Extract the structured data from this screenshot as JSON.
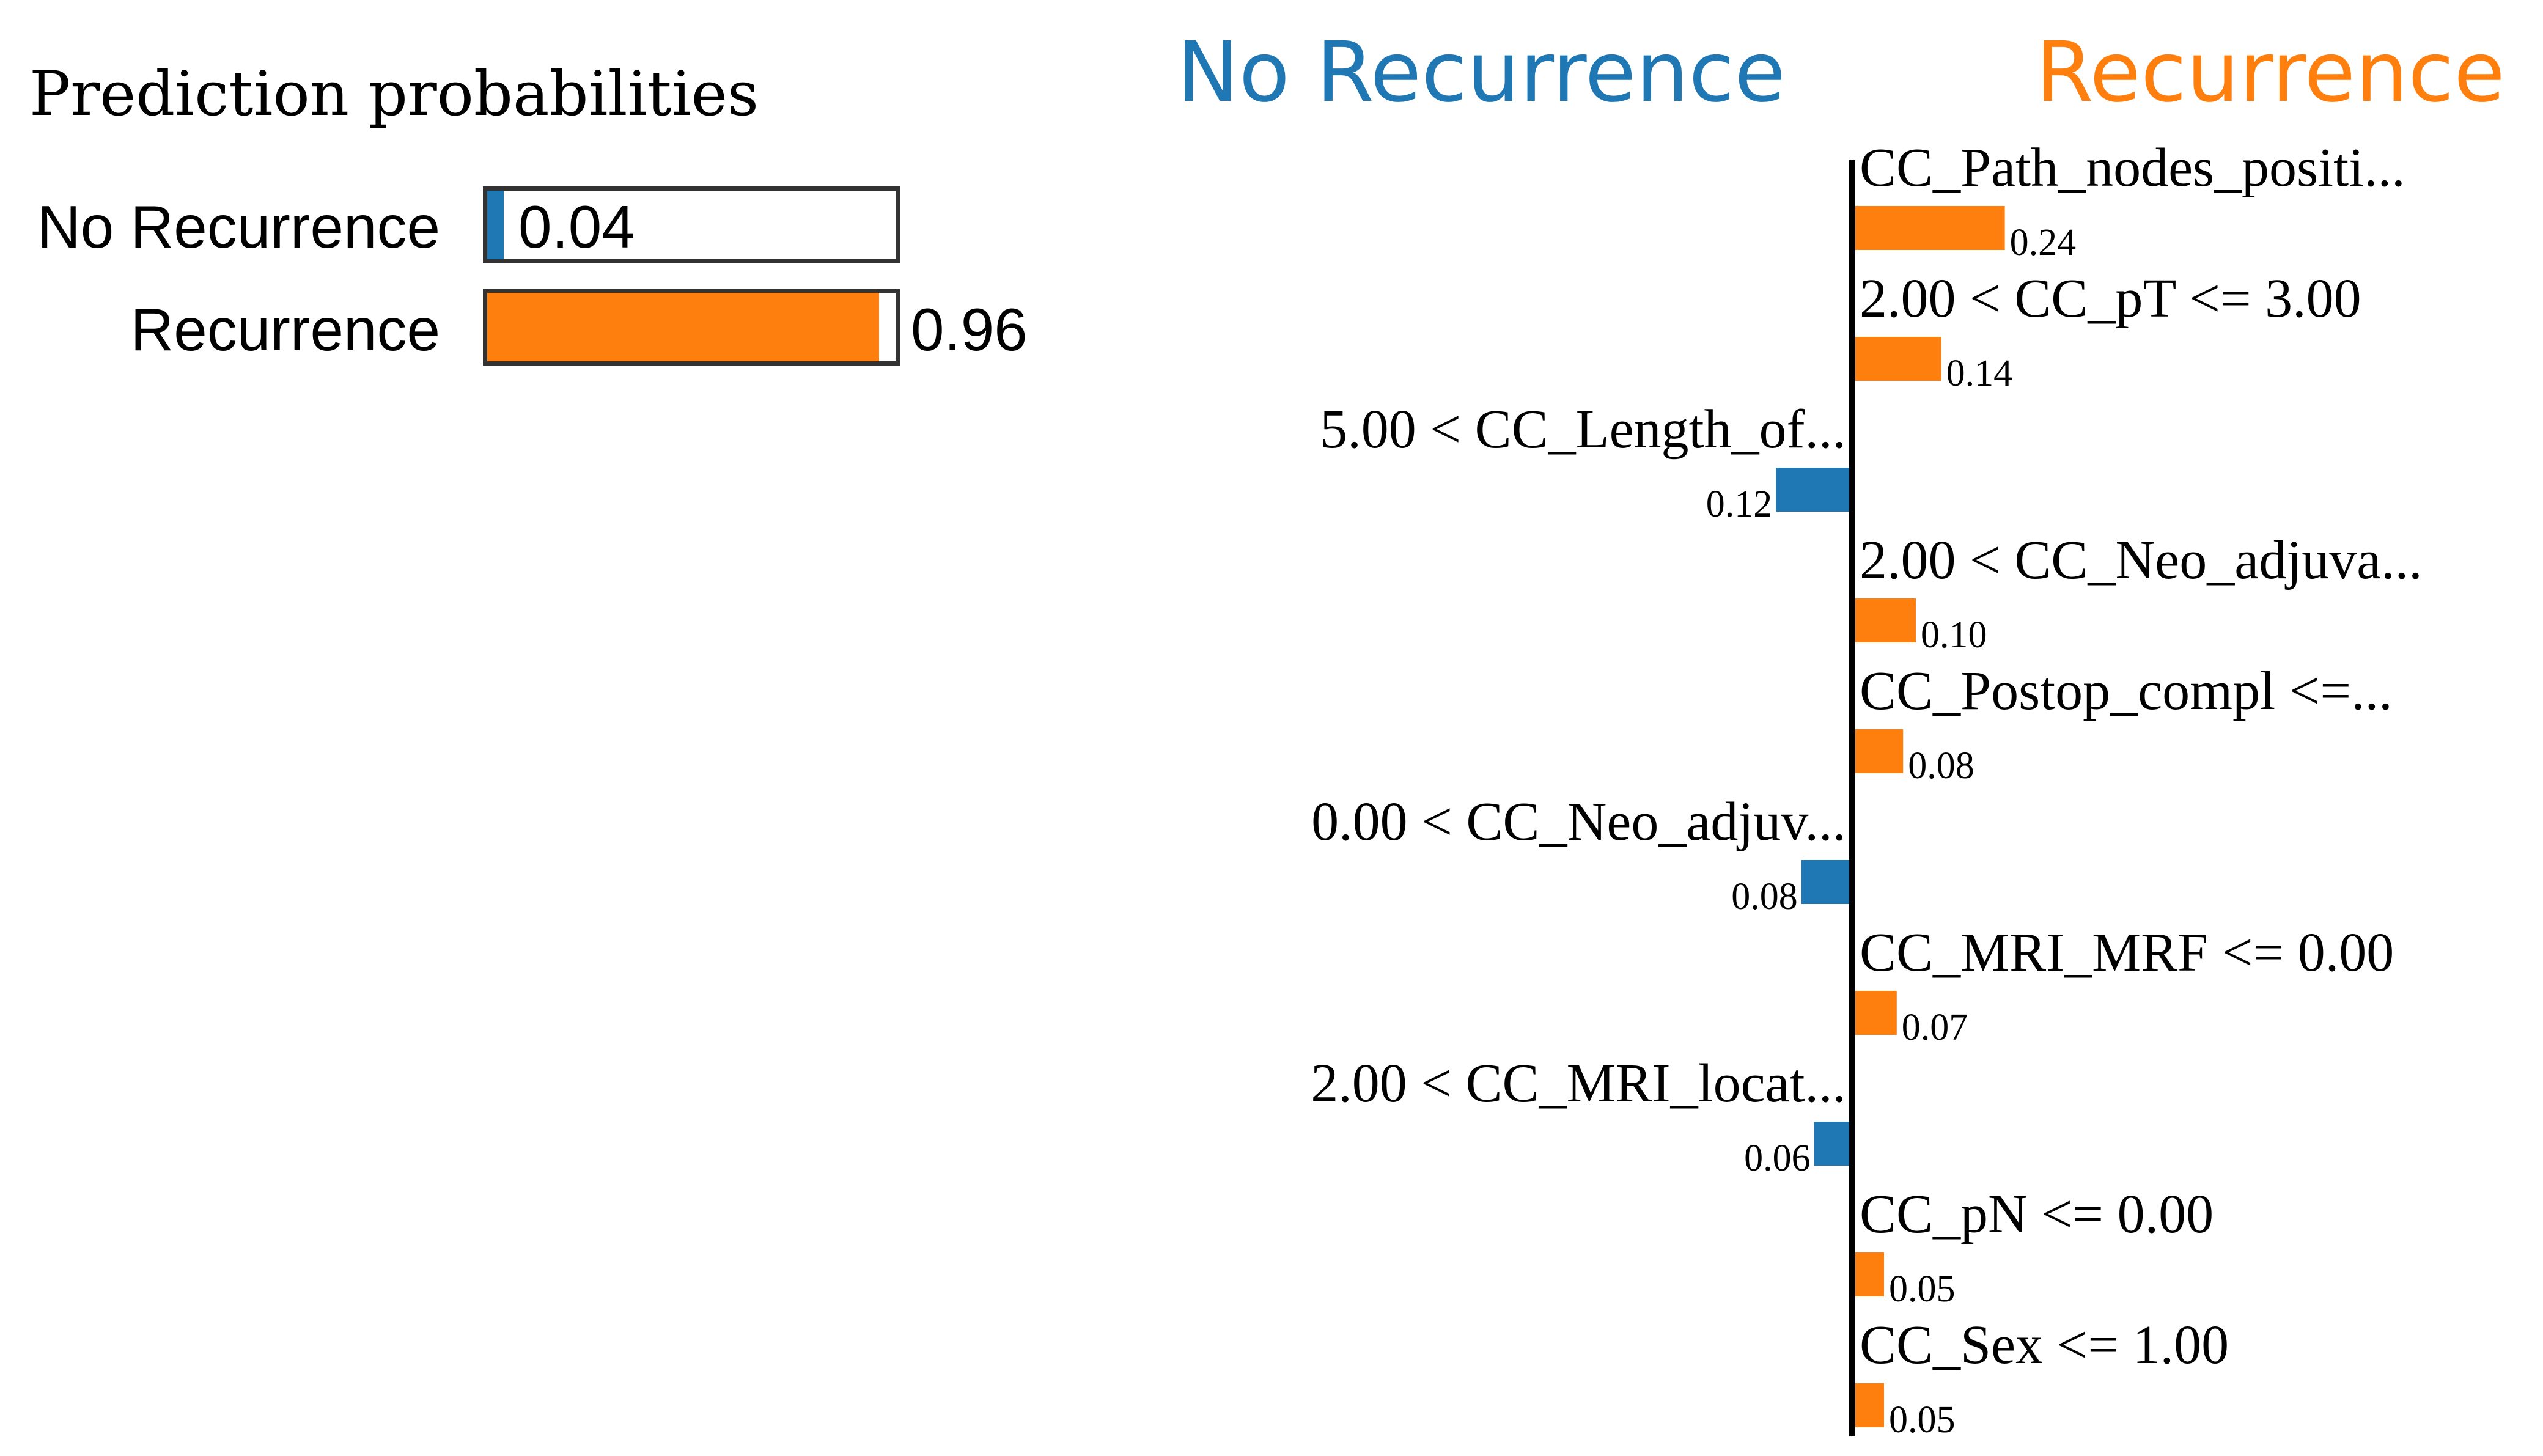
{
  "prediction_probabilities": {
    "title": "Prediction probabilities",
    "items": [
      {
        "label": "No Recurrence",
        "value": 0.04,
        "value_text": "0.04",
        "color": "#1f77b4"
      },
      {
        "label": "Recurrence",
        "value": 0.96,
        "value_text": "0.96",
        "color": "#ff7f0e"
      }
    ]
  },
  "headers": {
    "negative": "No Recurrence",
    "positive": "Recurrence",
    "negative_color": "#1f77b4",
    "positive_color": "#ff7f0e"
  },
  "chart_data": {
    "type": "bar",
    "orientation": "horizontal",
    "title": "",
    "xlabel": "",
    "ylabel": "",
    "categories": [
      "CC_Path_nodes_positi...",
      "2.00 < CC_pT <= 3.00",
      "5.00 < CC_Length_of...",
      "2.00 < CC_Neo_adjuva...",
      "CC_Postop_compl <=...",
      "0.00 < CC_Neo_adjuv...",
      "CC_MRI_MRF <= 0.00",
      "2.00 < CC_MRI_locat...",
      "CC_pN <= 0.00",
      "CC_Sex <= 1.00"
    ],
    "values": [
      0.24,
      0.14,
      -0.12,
      0.1,
      0.08,
      -0.08,
      0.07,
      -0.06,
      0.05,
      0.05
    ],
    "value_labels": [
      "0.24",
      "0.14",
      "0.12",
      "0.10",
      "0.08",
      "0.08",
      "0.07",
      "0.06",
      "0.05",
      "0.05"
    ],
    "series": [
      {
        "name": "No Recurrence",
        "color": "#1f77b4"
      },
      {
        "name": "Recurrence",
        "color": "#ff7f0e"
      }
    ]
  }
}
